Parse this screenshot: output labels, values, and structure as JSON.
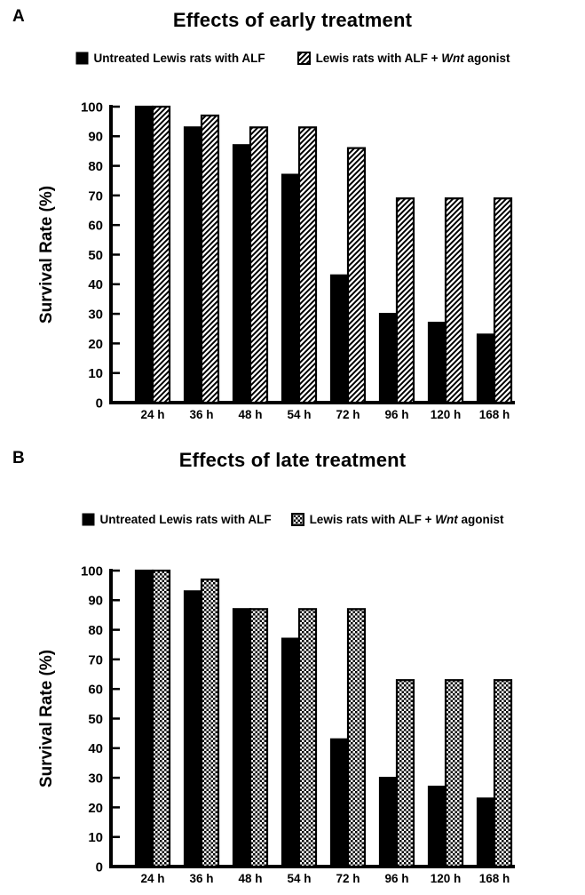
{
  "figure": {
    "background_color": "#ffffff",
    "bar_color": "#000000",
    "panels": [
      {
        "label": "A",
        "title": "Effects of early treatment",
        "legend": [
          {
            "label": "Untreated Lewis rats with ALF",
            "swatch": "solid-black"
          },
          {
            "label_prefix": "Lewis rats with ALF + ",
            "label_italic": "Wnt",
            "label_suffix": " agonist",
            "swatch": "diagonal-hatch"
          }
        ]
      },
      {
        "label": "B",
        "title": "Effects of late treatment",
        "legend": [
          {
            "label": "Untreated Lewis rats with ALF",
            "swatch": "solid-black"
          },
          {
            "label_prefix": "Lewis rats with ALF + ",
            "label_italic": "Wnt",
            "label_suffix": " agonist",
            "swatch": "checkerboard"
          }
        ]
      }
    ]
  },
  "chart_data": [
    {
      "type": "bar",
      "title": "Effects of early treatment",
      "categories": [
        "24 h",
        "36 h",
        "48 h",
        "54 h",
        "72 h",
        "96 h",
        "120 h",
        "168 h"
      ],
      "series": [
        {
          "name": "Untreated Lewis rats with ALF",
          "fill": "solid-black",
          "values": [
            100,
            93,
            87,
            77,
            43,
            30,
            27,
            23
          ]
        },
        {
          "name": "Lewis rats with ALF + Wnt agonist",
          "fill": "diagonal-hatch",
          "values": [
            100,
            97,
            93,
            93,
            86,
            69,
            69,
            69
          ]
        }
      ],
      "xlabel": "",
      "ylabel": "Survival Rate (%)",
      "ylim": [
        0,
        100
      ],
      "yticks": [
        0,
        10,
        20,
        30,
        40,
        50,
        60,
        70,
        80,
        90,
        100
      ],
      "grid": false,
      "legend_position": "top"
    },
    {
      "type": "bar",
      "title": "Effects of late treatment",
      "categories": [
        "24 h",
        "36 h",
        "48 h",
        "54 h",
        "72 h",
        "96 h",
        "120 h",
        "168 h"
      ],
      "series": [
        {
          "name": "Untreated Lewis rats with ALF",
          "fill": "solid-black",
          "values": [
            100,
            93,
            87,
            77,
            43,
            30,
            27,
            23
          ]
        },
        {
          "name": "Lewis rats with ALF + Wnt agonist",
          "fill": "checkerboard",
          "values": [
            100,
            97,
            87,
            87,
            87,
            63,
            63,
            63
          ]
        }
      ],
      "xlabel": "",
      "ylabel": "Survival Rate (%)",
      "ylim": [
        0,
        100
      ],
      "yticks": [
        0,
        10,
        20,
        30,
        40,
        50,
        60,
        70,
        80,
        90,
        100
      ],
      "grid": false,
      "legend_position": "top"
    }
  ]
}
